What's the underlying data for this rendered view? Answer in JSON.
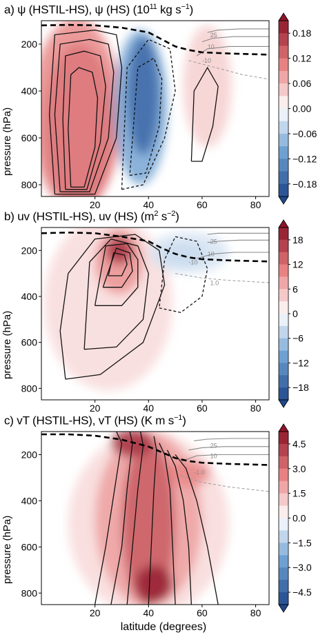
{
  "chart_data": [
    {
      "type": "heatmap",
      "panel_title": "a) ψ (HSTIL-HS), ψ (HS) (10",
      "title_exp": "11",
      "title_unit": " kg s",
      "title_unit_exp": "−1",
      "title_end": ")",
      "xlabel": "",
      "ylabel": "pressure (hPa)",
      "xlim": [
        0,
        85
      ],
      "ylim": [
        850,
        100
      ],
      "x_ticks": [
        "20",
        "40",
        "60",
        "80"
      ],
      "x_tick_values": [
        20,
        40,
        60,
        80
      ],
      "y_ticks": [
        "200",
        "400",
        "600",
        "800"
      ],
      "y_tick_values": [
        200,
        400,
        600,
        800
      ],
      "colorbar_ticks": [
        "0.18",
        "0.12",
        "0.06",
        "0.00",
        "−0.06",
        "−0.12",
        "−0.18"
      ],
      "colorbar_values": [
        0.18,
        0.12,
        0.06,
        0.0,
        -0.06,
        -0.12,
        -0.18
      ],
      "colorbar_range": [
        -0.21,
        0.21
      ],
      "contour_labels": [
        {
          "text": "25",
          "x": 63,
          "y": 170
        },
        {
          "text": "10",
          "x": 62,
          "y": 220
        },
        {
          "text": "-10",
          "x": 60,
          "y": 280
        }
      ],
      "fill_blobs": [
        {
          "x": 14,
          "y": 560,
          "rx": 13,
          "ry": 360,
          "value": 0.2
        },
        {
          "x": 13,
          "y": 500,
          "rx": 17,
          "ry": 410,
          "value": 0.1
        },
        {
          "x": 37,
          "y": 470,
          "rx": 10,
          "ry": 330,
          "value": -0.1
        },
        {
          "x": 38,
          "y": 420,
          "rx": 6,
          "ry": 250,
          "value": -0.17
        },
        {
          "x": 62,
          "y": 380,
          "rx": 9,
          "ry": 260,
          "value": 0.04
        }
      ],
      "tropopause": {
        "x": [
          0,
          10,
          20,
          30,
          40,
          45,
          50,
          55,
          60,
          70,
          85
        ],
        "y": [
          120,
          118,
          120,
          130,
          150,
          180,
          210,
          225,
          235,
          240,
          245
        ]
      },
      "hs_contours": [
        {
          "style": "solid",
          "x": [
            5,
            20,
            28,
            30,
            28,
            20,
            5,
            3,
            5
          ],
          "y": [
            840,
            840,
            600,
            300,
            160,
            140,
            160,
            500,
            840
          ]
        },
        {
          "style": "solid",
          "x": [
            7,
            18,
            25,
            27,
            25,
            18,
            7,
            5,
            7
          ],
          "y": [
            830,
            830,
            600,
            320,
            200,
            180,
            200,
            500,
            830
          ]
        },
        {
          "style": "solid",
          "x": [
            9,
            17,
            22,
            24,
            22,
            16,
            9,
            8,
            9
          ],
          "y": [
            820,
            820,
            620,
            380,
            250,
            230,
            250,
            520,
            820
          ]
        },
        {
          "style": "solid",
          "x": [
            11,
            16,
            20,
            21,
            19,
            14,
            11,
            10,
            11
          ],
          "y": [
            810,
            810,
            640,
            430,
            320,
            300,
            330,
            560,
            810
          ]
        },
        {
          "style": "dashed",
          "x": [
            30,
            38,
            46,
            50,
            48,
            40,
            32,
            30
          ],
          "y": [
            820,
            800,
            600,
            400,
            220,
            180,
            300,
            820
          ]
        },
        {
          "style": "dashed",
          "x": [
            33,
            39,
            44,
            45,
            42,
            36,
            33
          ],
          "y": [
            760,
            750,
            550,
            350,
            260,
            300,
            760
          ]
        },
        {
          "style": "solid",
          "x": [
            56,
            60,
            64,
            66,
            62,
            57,
            56
          ],
          "y": [
            700,
            700,
            550,
            380,
            300,
            400,
            700
          ]
        },
        {
          "style": "grey",
          "x": [
            58,
            62,
            70,
            85
          ],
          "y": [
            250,
            220,
            210,
            210
          ]
        },
        {
          "style": "grey",
          "x": [
            60,
            64,
            72,
            85
          ],
          "y": [
            190,
            175,
            168,
            168
          ]
        },
        {
          "style": "grey",
          "x": [
            62,
            66,
            74,
            85
          ],
          "y": [
            150,
            140,
            135,
            135
          ]
        },
        {
          "style": "grey-dashed",
          "x": [
            55,
            65,
            75,
            85
          ],
          "y": [
            270,
            300,
            330,
            350
          ]
        }
      ]
    },
    {
      "type": "heatmap",
      "panel_title": "b) uv (HSTIL-HS), uv (HS) (m",
      "title_exp": "2",
      "title_unit": " s",
      "title_unit_exp": "−2",
      "title_end": ")",
      "xlabel": "",
      "ylabel": "pressure (hPa)",
      "xlim": [
        0,
        85
      ],
      "ylim": [
        850,
        100
      ],
      "x_ticks": [
        "20",
        "40",
        "60",
        "80"
      ],
      "x_tick_values": [
        20,
        40,
        60,
        80
      ],
      "y_ticks": [
        "200",
        "400",
        "600",
        "800"
      ],
      "y_tick_values": [
        200,
        400,
        600,
        800
      ],
      "colorbar_ticks": [
        "18",
        "12",
        "6",
        "0",
        "−6",
        "−12",
        "−18"
      ],
      "colorbar_values": [
        18,
        12,
        6,
        0,
        -6,
        -12,
        -18
      ],
      "colorbar_range": [
        -21,
        21
      ],
      "contour_labels": [
        {
          "text": "25",
          "x": 63,
          "y": 170
        },
        {
          "text": "10",
          "x": 62,
          "y": 225
        },
        {
          "text": "-10",
          "x": 55,
          "y": 260
        },
        {
          "text": "1.0",
          "x": 63,
          "y": 350
        }
      ],
      "fill_blobs": [
        {
          "x": 25,
          "y": 430,
          "rx": 24,
          "ry": 380,
          "value": 3
        },
        {
          "x": 29,
          "y": 250,
          "rx": 9,
          "ry": 140,
          "value": 9
        },
        {
          "x": 29,
          "y": 200,
          "rx": 5,
          "ry": 60,
          "value": 18
        },
        {
          "x": 53,
          "y": 220,
          "rx": 9,
          "ry": 50,
          "value": -9
        },
        {
          "x": 55,
          "y": 210,
          "rx": 15,
          "ry": 90,
          "value": -3
        }
      ],
      "tropopause": {
        "x": [
          0,
          10,
          20,
          30,
          40,
          45,
          50,
          55,
          60,
          70,
          85
        ],
        "y": [
          125,
          122,
          125,
          140,
          160,
          190,
          215,
          230,
          238,
          243,
          248
        ]
      },
      "hs_contours": [
        {
          "style": "solid",
          "x": [
            9,
            22,
            38,
            46,
            44,
            35,
            20,
            10,
            7,
            9
          ],
          "y": [
            760,
            740,
            600,
            350,
            200,
            130,
            150,
            300,
            550,
            760
          ]
        },
        {
          "style": "solid",
          "x": [
            16,
            28,
            38,
            40,
            36,
            26,
            18,
            16
          ],
          "y": [
            630,
            620,
            500,
            300,
            180,
            150,
            250,
            630
          ]
        },
        {
          "style": "solid",
          "x": [
            20,
            30,
            36,
            36,
            32,
            24,
            20
          ],
          "y": [
            440,
            440,
            360,
            240,
            170,
            180,
            440
          ]
        },
        {
          "style": "solid",
          "x": [
            23,
            30,
            34,
            33,
            28,
            23
          ],
          "y": [
            360,
            360,
            290,
            210,
            190,
            360
          ]
        },
        {
          "style": "solid",
          "x": [
            25,
            30,
            32,
            31,
            27,
            25
          ],
          "y": [
            310,
            310,
            260,
            220,
            210,
            310
          ]
        },
        {
          "style": "dashed",
          "x": [
            44,
            52,
            60,
            62,
            58,
            50,
            46,
            44
          ],
          "y": [
            450,
            470,
            400,
            280,
            160,
            140,
            240,
            450
          ]
        },
        {
          "style": "grey",
          "x": [
            58,
            64,
            72,
            85
          ],
          "y": [
            235,
            215,
            208,
            208
          ]
        },
        {
          "style": "grey",
          "x": [
            62,
            66,
            74,
            85
          ],
          "y": [
            165,
            160,
            155,
            155
          ]
        },
        {
          "style": "grey",
          "x": [
            62,
            66,
            74,
            85
          ],
          "y": [
            130,
            125,
            125,
            125
          ]
        },
        {
          "style": "grey-dashed",
          "x": [
            50,
            60,
            70,
            85
          ],
          "y": [
            300,
            320,
            330,
            340
          ]
        }
      ]
    },
    {
      "type": "heatmap",
      "panel_title": "c) vT (HSTIL-HS), vT (HS) (K m s",
      "title_exp": "−1",
      "title_unit": "",
      "title_unit_exp": "",
      "title_end": ")",
      "xlabel": "latitude (degrees)",
      "ylabel": "pressure (hPa)",
      "xlim": [
        0,
        85
      ],
      "ylim": [
        850,
        100
      ],
      "x_ticks": [
        "20",
        "40",
        "60",
        "80"
      ],
      "x_tick_values": [
        20,
        40,
        60,
        80
      ],
      "y_ticks": [
        "200",
        "400",
        "600",
        "800"
      ],
      "y_tick_values": [
        200,
        400,
        600,
        800
      ],
      "colorbar_ticks": [
        "4.5",
        "3.0",
        "1.5",
        "0.0",
        "−1.5",
        "−3.0",
        "−4.5"
      ],
      "colorbar_values": [
        4.5,
        3.0,
        1.5,
        0.0,
        -1.5,
        -3.0,
        -4.5
      ],
      "colorbar_range": [
        -5.25,
        5.25
      ],
      "contour_labels": [
        {
          "text": "25",
          "x": 63,
          "y": 170
        },
        {
          "text": "10",
          "x": 63,
          "y": 215
        },
        {
          "text": "-1.0",
          "x": 57,
          "y": 285
        }
      ],
      "fill_blobs": [
        {
          "x": 40,
          "y": 500,
          "rx": 30,
          "ry": 400,
          "value": 0.8
        },
        {
          "x": 40,
          "y": 480,
          "rx": 20,
          "ry": 380,
          "value": 2
        },
        {
          "x": 40,
          "y": 500,
          "rx": 10,
          "ry": 360,
          "value": 3.5
        },
        {
          "x": 42,
          "y": 760,
          "rx": 7,
          "ry": 80,
          "value": 5
        },
        {
          "x": 34,
          "y": 150,
          "rx": 8,
          "ry": 60,
          "value": 4.5
        },
        {
          "x": 55,
          "y": 280,
          "rx": 8,
          "ry": 60,
          "value": 2.5
        }
      ],
      "tropopause": {
        "x": [
          0,
          10,
          20,
          30,
          40,
          45,
          50,
          55,
          60,
          70,
          85
        ],
        "y": [
          112,
          112,
          118,
          135,
          165,
          190,
          215,
          228,
          235,
          240,
          245
        ]
      },
      "hs_contours": [
        {
          "style": "solid",
          "x": [
            20,
            24,
            28,
            30,
            28
          ],
          "y": [
            850,
            600,
            300,
            150,
            100
          ]
        },
        {
          "style": "solid",
          "x": [
            26,
            30,
            32,
            34,
            33
          ],
          "y": [
            850,
            600,
            350,
            150,
            100
          ]
        },
        {
          "style": "solid",
          "x": [
            32,
            34,
            36,
            38,
            37
          ],
          "y": [
            850,
            600,
            350,
            160,
            100
          ]
        },
        {
          "style": "solid",
          "x": [
            40,
            41,
            42,
            43,
            42
          ],
          "y": [
            850,
            600,
            350,
            180,
            120
          ]
        },
        {
          "style": "solid",
          "x": [
            50,
            49,
            48,
            46,
            44
          ],
          "y": [
            850,
            600,
            350,
            200,
            150
          ]
        },
        {
          "style": "solid",
          "x": [
            56,
            55,
            53,
            50,
            47
          ],
          "y": [
            850,
            600,
            400,
            250,
            180
          ]
        },
        {
          "style": "solid",
          "x": [
            66,
            62,
            58,
            54,
            50
          ],
          "y": [
            850,
            600,
            400,
            260,
            200
          ]
        },
        {
          "style": "grey",
          "x": [
            52,
            58,
            66,
            85
          ],
          "y": [
            230,
            205,
            200,
            200
          ]
        },
        {
          "style": "grey",
          "x": [
            55,
            60,
            68,
            85
          ],
          "y": [
            180,
            170,
            165,
            165
          ]
        },
        {
          "style": "grey",
          "x": [
            57,
            62,
            70,
            85
          ],
          "y": [
            140,
            133,
            130,
            130
          ]
        },
        {
          "style": "grey-dashed",
          "x": [
            52,
            60,
            70,
            85
          ],
          "y": [
            290,
            320,
            340,
            360
          ]
        }
      ]
    }
  ]
}
